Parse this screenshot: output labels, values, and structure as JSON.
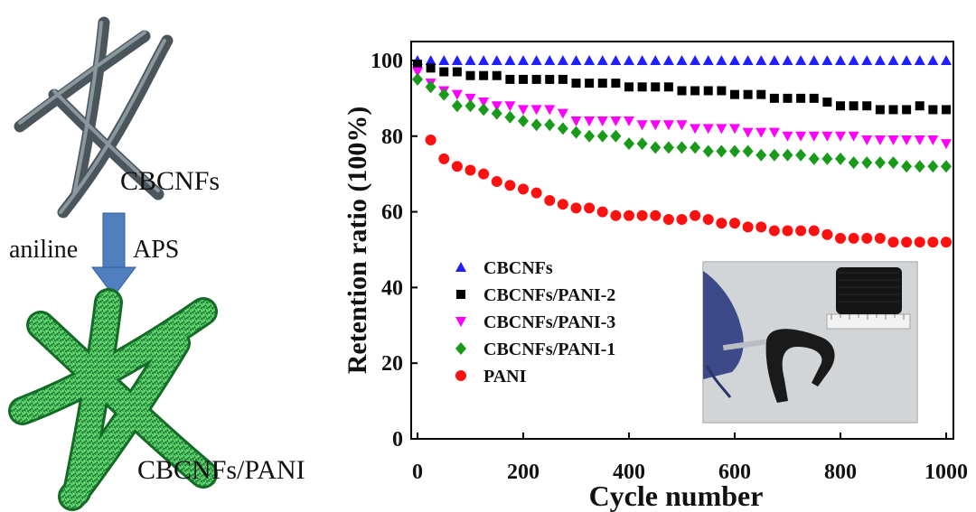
{
  "schematic": {
    "top_label": "CBCNFs",
    "bottom_label": "CBCNFs/PANI",
    "reagent_left": "aniline",
    "reagent_right": "APS",
    "fiber_color": "#5f6b73",
    "coated_color": "#2ea64a",
    "arrow_color": "#4f7fbf"
  },
  "chart_data": {
    "type": "scatter",
    "xlabel": "Cycle number",
    "ylabel": "Retention ratio (100%)",
    "xlim": [
      0,
      1000
    ],
    "ylim": [
      0,
      105
    ],
    "xticks": [
      0,
      200,
      400,
      600,
      800,
      1000
    ],
    "yticks": [
      0,
      20,
      40,
      60,
      80,
      100
    ],
    "grid": false,
    "legend_placement": "bottom-left",
    "series": [
      {
        "name": "CBCNFs",
        "color": "#1f1fff",
        "marker": "triangle-up",
        "x": [
          0,
          25,
          50,
          75,
          100,
          125,
          150,
          175,
          200,
          225,
          250,
          275,
          300,
          325,
          350,
          375,
          400,
          425,
          450,
          475,
          500,
          525,
          550,
          575,
          600,
          625,
          650,
          675,
          700,
          725,
          750,
          775,
          800,
          825,
          850,
          875,
          900,
          925,
          950,
          975,
          1000
        ],
        "y": [
          100,
          100,
          100,
          100,
          100,
          100,
          100,
          100,
          100,
          100,
          100,
          100,
          100,
          100,
          100,
          100,
          100,
          100,
          100,
          100,
          100,
          100,
          100,
          100,
          100,
          100,
          100,
          100,
          100,
          100,
          100,
          100,
          100,
          100,
          100,
          100,
          100,
          100,
          100,
          100,
          100
        ]
      },
      {
        "name": "CBCNFs/PANI-2",
        "color": "#000000",
        "marker": "square",
        "x": [
          0,
          25,
          50,
          75,
          100,
          125,
          150,
          175,
          200,
          225,
          250,
          275,
          300,
          325,
          350,
          375,
          400,
          425,
          450,
          475,
          500,
          525,
          550,
          575,
          600,
          625,
          650,
          675,
          700,
          725,
          750,
          775,
          800,
          825,
          850,
          875,
          900,
          925,
          950,
          975,
          1000
        ],
        "y": [
          99,
          98,
          97,
          97,
          96,
          96,
          96,
          95,
          95,
          95,
          95,
          95,
          94,
          94,
          94,
          94,
          93,
          93,
          93,
          93,
          92,
          92,
          92,
          92,
          91,
          91,
          91,
          90,
          90,
          90,
          90,
          89,
          88,
          88,
          88,
          87,
          87,
          87,
          88,
          87,
          87
        ]
      },
      {
        "name": "CBCNFs/PANI-3",
        "color": "#ff00ff",
        "marker": "triangle-down",
        "x": [
          0,
          25,
          50,
          75,
          100,
          125,
          150,
          175,
          200,
          225,
          250,
          275,
          300,
          325,
          350,
          375,
          400,
          425,
          450,
          475,
          500,
          525,
          550,
          575,
          600,
          625,
          650,
          675,
          700,
          725,
          750,
          775,
          800,
          825,
          850,
          875,
          900,
          925,
          950,
          975,
          1000
        ],
        "y": [
          97,
          94,
          92,
          91,
          90,
          89,
          88,
          88,
          87,
          87,
          87,
          86,
          84,
          84,
          84,
          84,
          84,
          83,
          83,
          83,
          83,
          82,
          82,
          82,
          82,
          81,
          81,
          81,
          80,
          80,
          80,
          80,
          80,
          80,
          79,
          79,
          79,
          79,
          79,
          79,
          78
        ]
      },
      {
        "name": "CBCNFs/PANI-1",
        "color": "#1a9a1a",
        "marker": "diamond",
        "x": [
          0,
          25,
          50,
          75,
          100,
          125,
          150,
          175,
          200,
          225,
          250,
          275,
          300,
          325,
          350,
          375,
          400,
          425,
          450,
          475,
          500,
          525,
          550,
          575,
          600,
          625,
          650,
          675,
          700,
          725,
          750,
          775,
          800,
          825,
          850,
          875,
          900,
          925,
          950,
          975,
          1000
        ],
        "y": [
          95,
          93,
          91,
          88,
          88,
          87,
          86,
          85,
          84,
          83,
          83,
          82,
          81,
          80,
          80,
          80,
          78,
          78,
          77,
          77,
          77,
          77,
          76,
          76,
          76,
          76,
          75,
          75,
          75,
          75,
          74,
          74,
          74,
          73,
          73,
          73,
          73,
          72,
          72,
          72,
          72
        ]
      },
      {
        "name": "PANI",
        "color": "#ff1010",
        "marker": "circle",
        "x": [
          25,
          50,
          75,
          100,
          125,
          150,
          175,
          200,
          225,
          250,
          275,
          300,
          325,
          350,
          375,
          400,
          425,
          450,
          475,
          500,
          525,
          550,
          575,
          600,
          625,
          650,
          675,
          700,
          725,
          750,
          775,
          800,
          825,
          850,
          875,
          900,
          925,
          950,
          975,
          1000
        ],
        "y": [
          79,
          74,
          72,
          71,
          70,
          68,
          67,
          66,
          65,
          63,
          62,
          61,
          61,
          60,
          59,
          59,
          59,
          59,
          58,
          58,
          59,
          58,
          57,
          57,
          56,
          56,
          55,
          55,
          55,
          55,
          54,
          53,
          53,
          53,
          53,
          52,
          52,
          52,
          52,
          52
        ]
      }
    ]
  }
}
